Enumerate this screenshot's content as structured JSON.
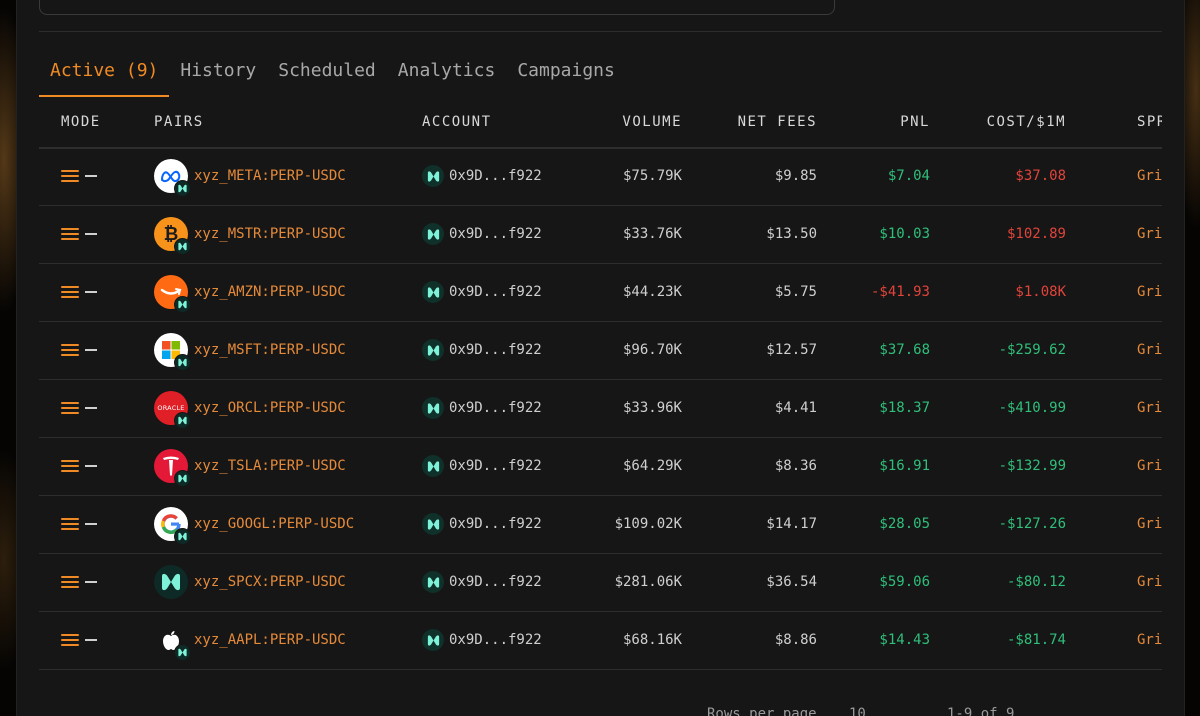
{
  "tabs": [
    {
      "label": "Active (9)",
      "active": true
    },
    {
      "label": "History",
      "active": false
    },
    {
      "label": "Scheduled",
      "active": false
    },
    {
      "label": "Analytics",
      "active": false
    },
    {
      "label": "Campaigns",
      "active": false
    }
  ],
  "columns": {
    "mode": "MODE",
    "pairs": "PAIRS",
    "account": "ACCOUNT",
    "volume": "VOLUME",
    "net_fees": "NET FEES",
    "pnl": "PNL",
    "cost": "COST/$1M",
    "spread": "SPR"
  },
  "colors": {
    "accent": "#f08a24",
    "positive": "#2fbf7a",
    "negative": "#e0443a"
  },
  "rows": [
    {
      "pair": "xyz_META:PERP-USDC",
      "logo": "meta-icon",
      "account": "0x9D...f922",
      "volume": "$75.79K",
      "net_fees": "$9.85",
      "pnl": "$7.04",
      "pnl_sign": "positive",
      "cost": "$37.08",
      "cost_sign": "negative",
      "spread": "Gri"
    },
    {
      "pair": "xyz_MSTR:PERP-USDC",
      "logo": "bitcoin-icon",
      "account": "0x9D...f922",
      "volume": "$33.76K",
      "net_fees": "$13.50",
      "pnl": "$10.03",
      "pnl_sign": "positive",
      "cost": "$102.89",
      "cost_sign": "negative",
      "spread": "Gri"
    },
    {
      "pair": "xyz_AMZN:PERP-USDC",
      "logo": "amazon-icon",
      "account": "0x9D...f922",
      "volume": "$44.23K",
      "net_fees": "$5.75",
      "pnl": "-$41.93",
      "pnl_sign": "negative",
      "cost": "$1.08K",
      "cost_sign": "negative",
      "spread": "Gri"
    },
    {
      "pair": "xyz_MSFT:PERP-USDC",
      "logo": "microsoft-icon",
      "account": "0x9D...f922",
      "volume": "$96.70K",
      "net_fees": "$12.57",
      "pnl": "$37.68",
      "pnl_sign": "positive",
      "cost": "-$259.62",
      "cost_sign": "positive",
      "spread": "Gri"
    },
    {
      "pair": "xyz_ORCL:PERP-USDC",
      "logo": "oracle-icon",
      "account": "0x9D...f922",
      "volume": "$33.96K",
      "net_fees": "$4.41",
      "pnl": "$18.37",
      "pnl_sign": "positive",
      "cost": "-$410.99",
      "cost_sign": "positive",
      "spread": "Gri"
    },
    {
      "pair": "xyz_TSLA:PERP-USDC",
      "logo": "tesla-icon",
      "account": "0x9D...f922",
      "volume": "$64.29K",
      "net_fees": "$8.36",
      "pnl": "$16.91",
      "pnl_sign": "positive",
      "cost": "-$132.99",
      "cost_sign": "positive",
      "spread": "Gri"
    },
    {
      "pair": "xyz_GOOGL:PERP-USDC",
      "logo": "google-icon",
      "account": "0x9D...f922",
      "volume": "$109.02K",
      "net_fees": "$14.17",
      "pnl": "$28.05",
      "pnl_sign": "positive",
      "cost": "-$127.26",
      "cost_sign": "positive",
      "spread": "Gri"
    },
    {
      "pair": "xyz_SPCX:PERP-USDC",
      "logo": "hyperliquid-icon",
      "account": "0x9D...f922",
      "volume": "$281.06K",
      "net_fees": "$36.54",
      "pnl": "$59.06",
      "pnl_sign": "positive",
      "cost": "-$80.12",
      "cost_sign": "positive",
      "spread": "Gri"
    },
    {
      "pair": "xyz_AAPL:PERP-USDC",
      "logo": "apple-icon",
      "account": "0x9D...f922",
      "volume": "$68.16K",
      "net_fees": "$8.86",
      "pnl": "$14.43",
      "pnl_sign": "positive",
      "cost": "-$81.74",
      "cost_sign": "positive",
      "spread": "Gri"
    }
  ],
  "footer": {
    "rows_per_page_label": "Rows per page",
    "rows_per_page_value": "10",
    "range": "1-9 of 9"
  }
}
